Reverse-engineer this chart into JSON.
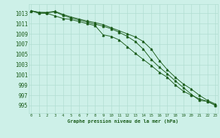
{
  "title": "Graphe pression niveau de la mer (hPa)",
  "background_color": "#cdf0e8",
  "grid_color": "#b0ddd0",
  "line_color": "#1a5c1a",
  "x_ticks": [
    0,
    1,
    2,
    3,
    4,
    5,
    6,
    7,
    8,
    9,
    10,
    11,
    12,
    13,
    14,
    15,
    16,
    17,
    18,
    19,
    20,
    21,
    22,
    23
  ],
  "y_ticks": [
    995,
    997,
    999,
    1001,
    1003,
    1005,
    1007,
    1009,
    1011,
    1013
  ],
  "ylim": [
    993.5,
    1014.8
  ],
  "xlim": [
    -0.3,
    23.3
  ],
  "series1": [
    1013.5,
    1013.2,
    1013.1,
    1013.3,
    1012.6,
    1012.1,
    1011.7,
    1011.3,
    1010.9,
    1010.5,
    1010.0,
    1009.3,
    1008.5,
    1007.5,
    1006.0,
    1004.0,
    1002.5,
    1001.2,
    999.8,
    998.5,
    997.2,
    996.0,
    995.8,
    995.1
  ],
  "series2": [
    1013.5,
    1013.0,
    1013.0,
    1012.5,
    1012.0,
    1011.8,
    1011.4,
    1011.0,
    1010.6,
    1008.8,
    1008.5,
    1007.8,
    1006.5,
    1005.2,
    1004.0,
    1002.8,
    1001.5,
    1000.5,
    999.0,
    997.8,
    997.0,
    996.3,
    995.8,
    995.0
  ],
  "series3": [
    1013.5,
    1013.2,
    1013.2,
    1013.4,
    1012.8,
    1012.3,
    1011.9,
    1011.5,
    1011.2,
    1010.8,
    1010.2,
    1009.6,
    1009.0,
    1008.4,
    1007.5,
    1006.0,
    1003.8,
    1002.0,
    1000.5,
    999.2,
    998.2,
    997.0,
    996.0,
    995.3
  ],
  "xlabel_fontsize": 5.0,
  "ytick_fontsize": 5.5,
  "xtick_fontsize": 4.2
}
